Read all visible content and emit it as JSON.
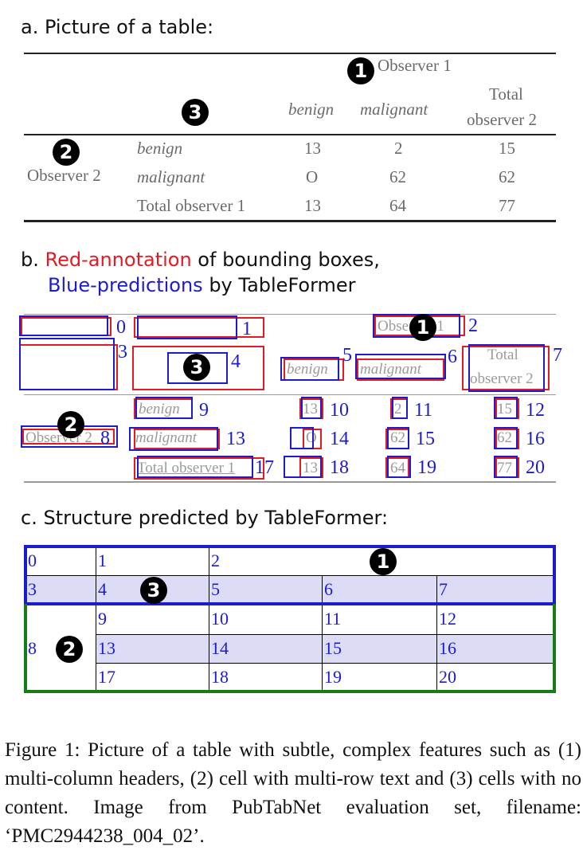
{
  "section_a": {
    "heading": "a. Picture of a table:",
    "table": {
      "observer1": "Observer 1",
      "benign": "benign",
      "malignant": "malignant",
      "total_obs2_line1": "Total",
      "total_obs2_line2": "observer 2",
      "observer2": "Observer 2",
      "total_obs1": "Total observer 1",
      "rows": [
        [
          "13",
          "2",
          "15"
        ],
        [
          "O",
          "62",
          "62"
        ],
        [
          "13",
          "64",
          "77"
        ]
      ]
    },
    "badges": [
      "1",
      "2",
      "3"
    ]
  },
  "section_b": {
    "heading_prefix": "b. ",
    "heading_red": "Red-annotation",
    "heading_mid": " of bounding boxes,",
    "heading_blue": "Blue-predictions",
    "heading_end": " by TableFormer",
    "red_color": "#e01b24",
    "blue_color": "#1c1ccc",
    "indices": [
      "0",
      "1",
      "2",
      "3",
      "4",
      "5",
      "6",
      "7",
      "8",
      "9",
      "10",
      "11",
      "12",
      "13",
      "14",
      "15",
      "16",
      "17",
      "18",
      "19",
      "20"
    ]
  },
  "section_c": {
    "heading": "c. Structure predicted by TableFormer:",
    "header_border_color": "#1c1ccc",
    "body_border_color": "#1a7a1a",
    "highlight_color": "#dcdcf7",
    "cells": [
      "0",
      "1",
      "2",
      "3",
      "4",
      "5",
      "6",
      "7",
      "8",
      "9",
      "10",
      "11",
      "12",
      "13",
      "14",
      "15",
      "16",
      "17",
      "18",
      "19",
      "20"
    ]
  },
  "caption": "Figure 1:  Picture of a table with subtle, complex features such as (1) multi-column headers, (2) cell with multi-row text and (3) cells with no content. Image from PubTabNet evaluation set, filename: ‘PMC2944238_004_02’."
}
